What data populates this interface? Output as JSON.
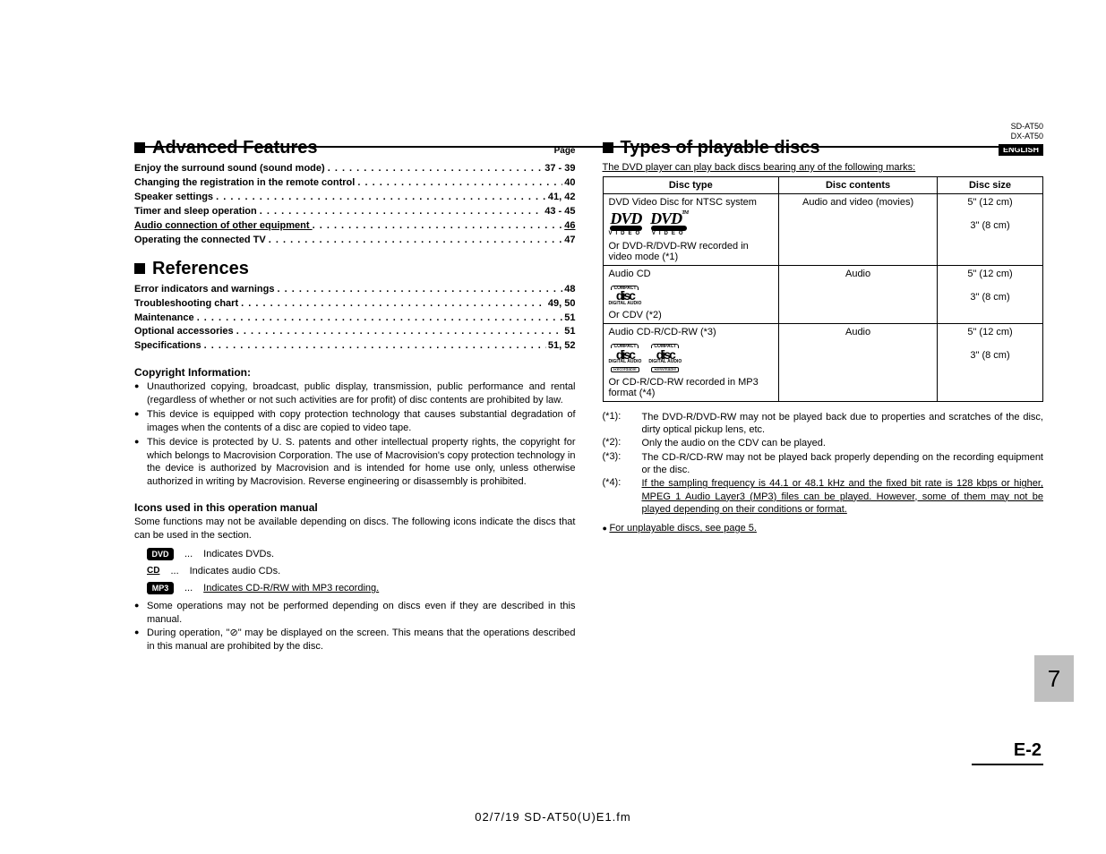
{
  "meta": {
    "model1": "SD-AT50",
    "model2": "DX-AT50",
    "lang_badge": "ENGLISH",
    "page_label": "Page",
    "footer": "02/7/19     SD-AT50(U)E1.fm",
    "side_page": "7",
    "page_code": "E-2"
  },
  "left": {
    "adv_title": "Advanced Features",
    "ref_title": "References",
    "toc_adv": [
      {
        "label": "Enjoy the surround sound (sound mode)",
        "page": "37 - 39",
        "under": false
      },
      {
        "label": "Changing the registration in the remote control",
        "page": "40",
        "under": false
      },
      {
        "label": "Speaker settings",
        "page": "41, 42",
        "under": false
      },
      {
        "label": "Timer and sleep operation",
        "page": "43 - 45",
        "under": false
      },
      {
        "label": "Audio connection of other equipment",
        "page": "46",
        "under": true
      },
      {
        "label": "Operating the connected TV",
        "page": "47",
        "under": false
      }
    ],
    "toc_ref": [
      {
        "label": "Error indicators and warnings",
        "page": "48"
      },
      {
        "label": "Troubleshooting chart",
        "page": "49, 50"
      },
      {
        "label": "Maintenance",
        "page": "51"
      },
      {
        "label": "Optional accessories",
        "page": "51"
      },
      {
        "label": "Specifications",
        "page": "51, 52"
      }
    ],
    "copyright_head": "Copyright Information:",
    "copyright_bullets": [
      "Unauthorized copying, broadcast, public display, transmission, public performance and rental (regardless of whether or not such activities are for profit) of disc contents are prohibited by law.",
      "This device is equipped with copy protection technology that causes substantial degradation of images when the contents of a disc are copied to video tape.",
      "This device is protected by U. S. patents and other intellectual property rights, the copyright for which belongs to Macrovision Corporation. The use of Macrovision's copy protection technology in the device is authorized by Macrovision and is intended for home use only, unless otherwise authorized in writing by Macrovision. Reverse engineering or disassembly is prohibited."
    ],
    "icons_head": "Icons used in this operation manual",
    "icons_intro": "Some functions may not be available depending on discs. The following icons indicate the discs that can be used in the section.",
    "icons": [
      {
        "badge": "DVD",
        "style": "black",
        "text": "Indicates DVDs."
      },
      {
        "badge": "CD",
        "style": "cd",
        "text": "Indicates audio CDs."
      },
      {
        "badge": "MP3",
        "style": "black",
        "text": "Indicates CD-R/RW with MP3 recording.",
        "under": true
      }
    ],
    "notes": [
      "Some operations may not be performed depending on discs even if they are described in this manual.",
      "During operation, \"⊘\" may be displayed on the screen. This means that the operations described in this manual are prohibited by the disc."
    ]
  },
  "right": {
    "title": "Types of playable discs",
    "intro": "The DVD player can play back discs bearing any of the following marks:",
    "headers": {
      "type": "Disc type",
      "contents": "Disc contents",
      "size": "Disc size"
    },
    "rows": [
      {
        "type_line1": "DVD Video Disc for NTSC system",
        "type_line2": "Or DVD-R/DVD-RW recorded in video mode (*1)",
        "logos": "dvd",
        "contents": "Audio and video (movies)",
        "size1": "5\" (12 cm)",
        "size2": "3\" (8 cm)"
      },
      {
        "type_line1": "Audio CD",
        "type_line2": "Or CDV (*2)",
        "logos": "cd",
        "contents": "Audio",
        "size1": "5\" (12 cm)",
        "size2": "3\" (8 cm)"
      },
      {
        "type_line1": "Audio CD-R/CD-RW (*3)",
        "type_line2": "Or CD-R/CD-RW recorded in MP3 format (*4)",
        "logos": "cdr",
        "contents": "Audio",
        "size1": "5\" (12 cm)",
        "size2": "3\" (8 cm)"
      }
    ],
    "footnotes": [
      {
        "key": "(*1):",
        "val": "The DVD-R/DVD-RW may not be played back due to properties and scratches of the disc, dirty optical pickup lens, etc."
      },
      {
        "key": "(*2):",
        "val": "Only the audio on the CDV can be played."
      },
      {
        "key": "(*3):",
        "val": "The CD-R/CD-RW may not be played back properly depending on the recording equipment or the disc."
      },
      {
        "key": "(*4):",
        "val": "If the sampling frequency is 44.1 or 48.1 kHz and the fixed bit rate is 128 kbps or higher, MPEG 1 Audio Layer3 (MP3) files can be played. However, some of them may not be played depending on their conditions or format.",
        "under": true
      }
    ],
    "seepage": "For unplayable discs, see page 5."
  }
}
